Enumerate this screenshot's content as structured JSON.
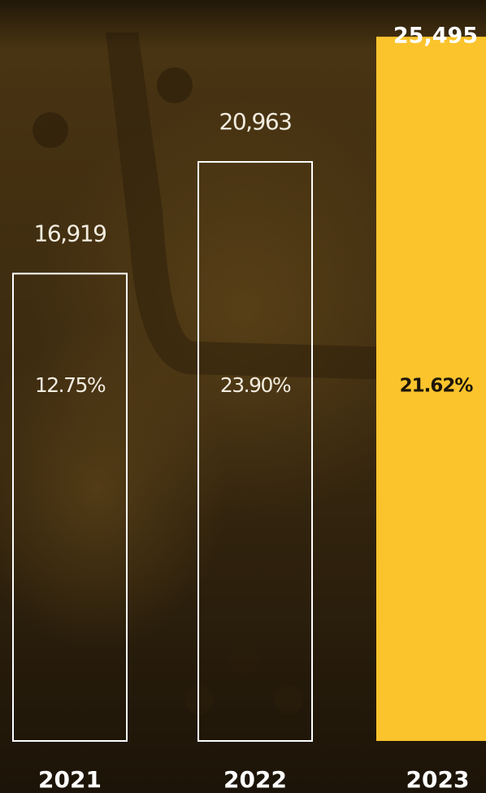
{
  "chart_data": {
    "type": "bar",
    "categories": [
      "2021",
      "2022",
      "2023"
    ],
    "values": [
      16919,
      20963,
      25495
    ],
    "value_labels": [
      "16,919",
      "20,963",
      "25,495"
    ],
    "growth_labels": [
      "12.75%",
      "23.90%",
      "21.62%"
    ],
    "colors": [
      "#ffffff",
      "#ffffff",
      "#fbc42d"
    ],
    "highlight_category": "2023",
    "ylim": [
      0,
      26000
    ]
  }
}
